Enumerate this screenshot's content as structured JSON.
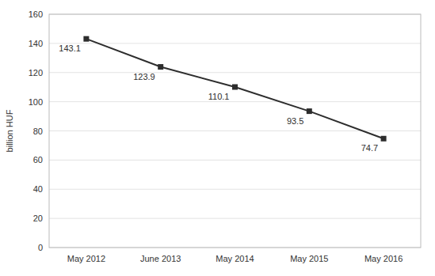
{
  "chart_data": {
    "type": "line",
    "categories": [
      "May 2012",
      "June 2013",
      "May 2014",
      "May 2015",
      "May 2016"
    ],
    "values": [
      143.1,
      123.9,
      110.1,
      93.5,
      74.7
    ],
    "ylabel": "billion HUF",
    "ylim": [
      0,
      160
    ],
    "yticks": [
      0,
      20,
      40,
      60,
      80,
      100,
      120,
      140,
      160
    ],
    "color": "#2d2d2d",
    "marker": "square",
    "grid": true,
    "data_labels": true
  }
}
